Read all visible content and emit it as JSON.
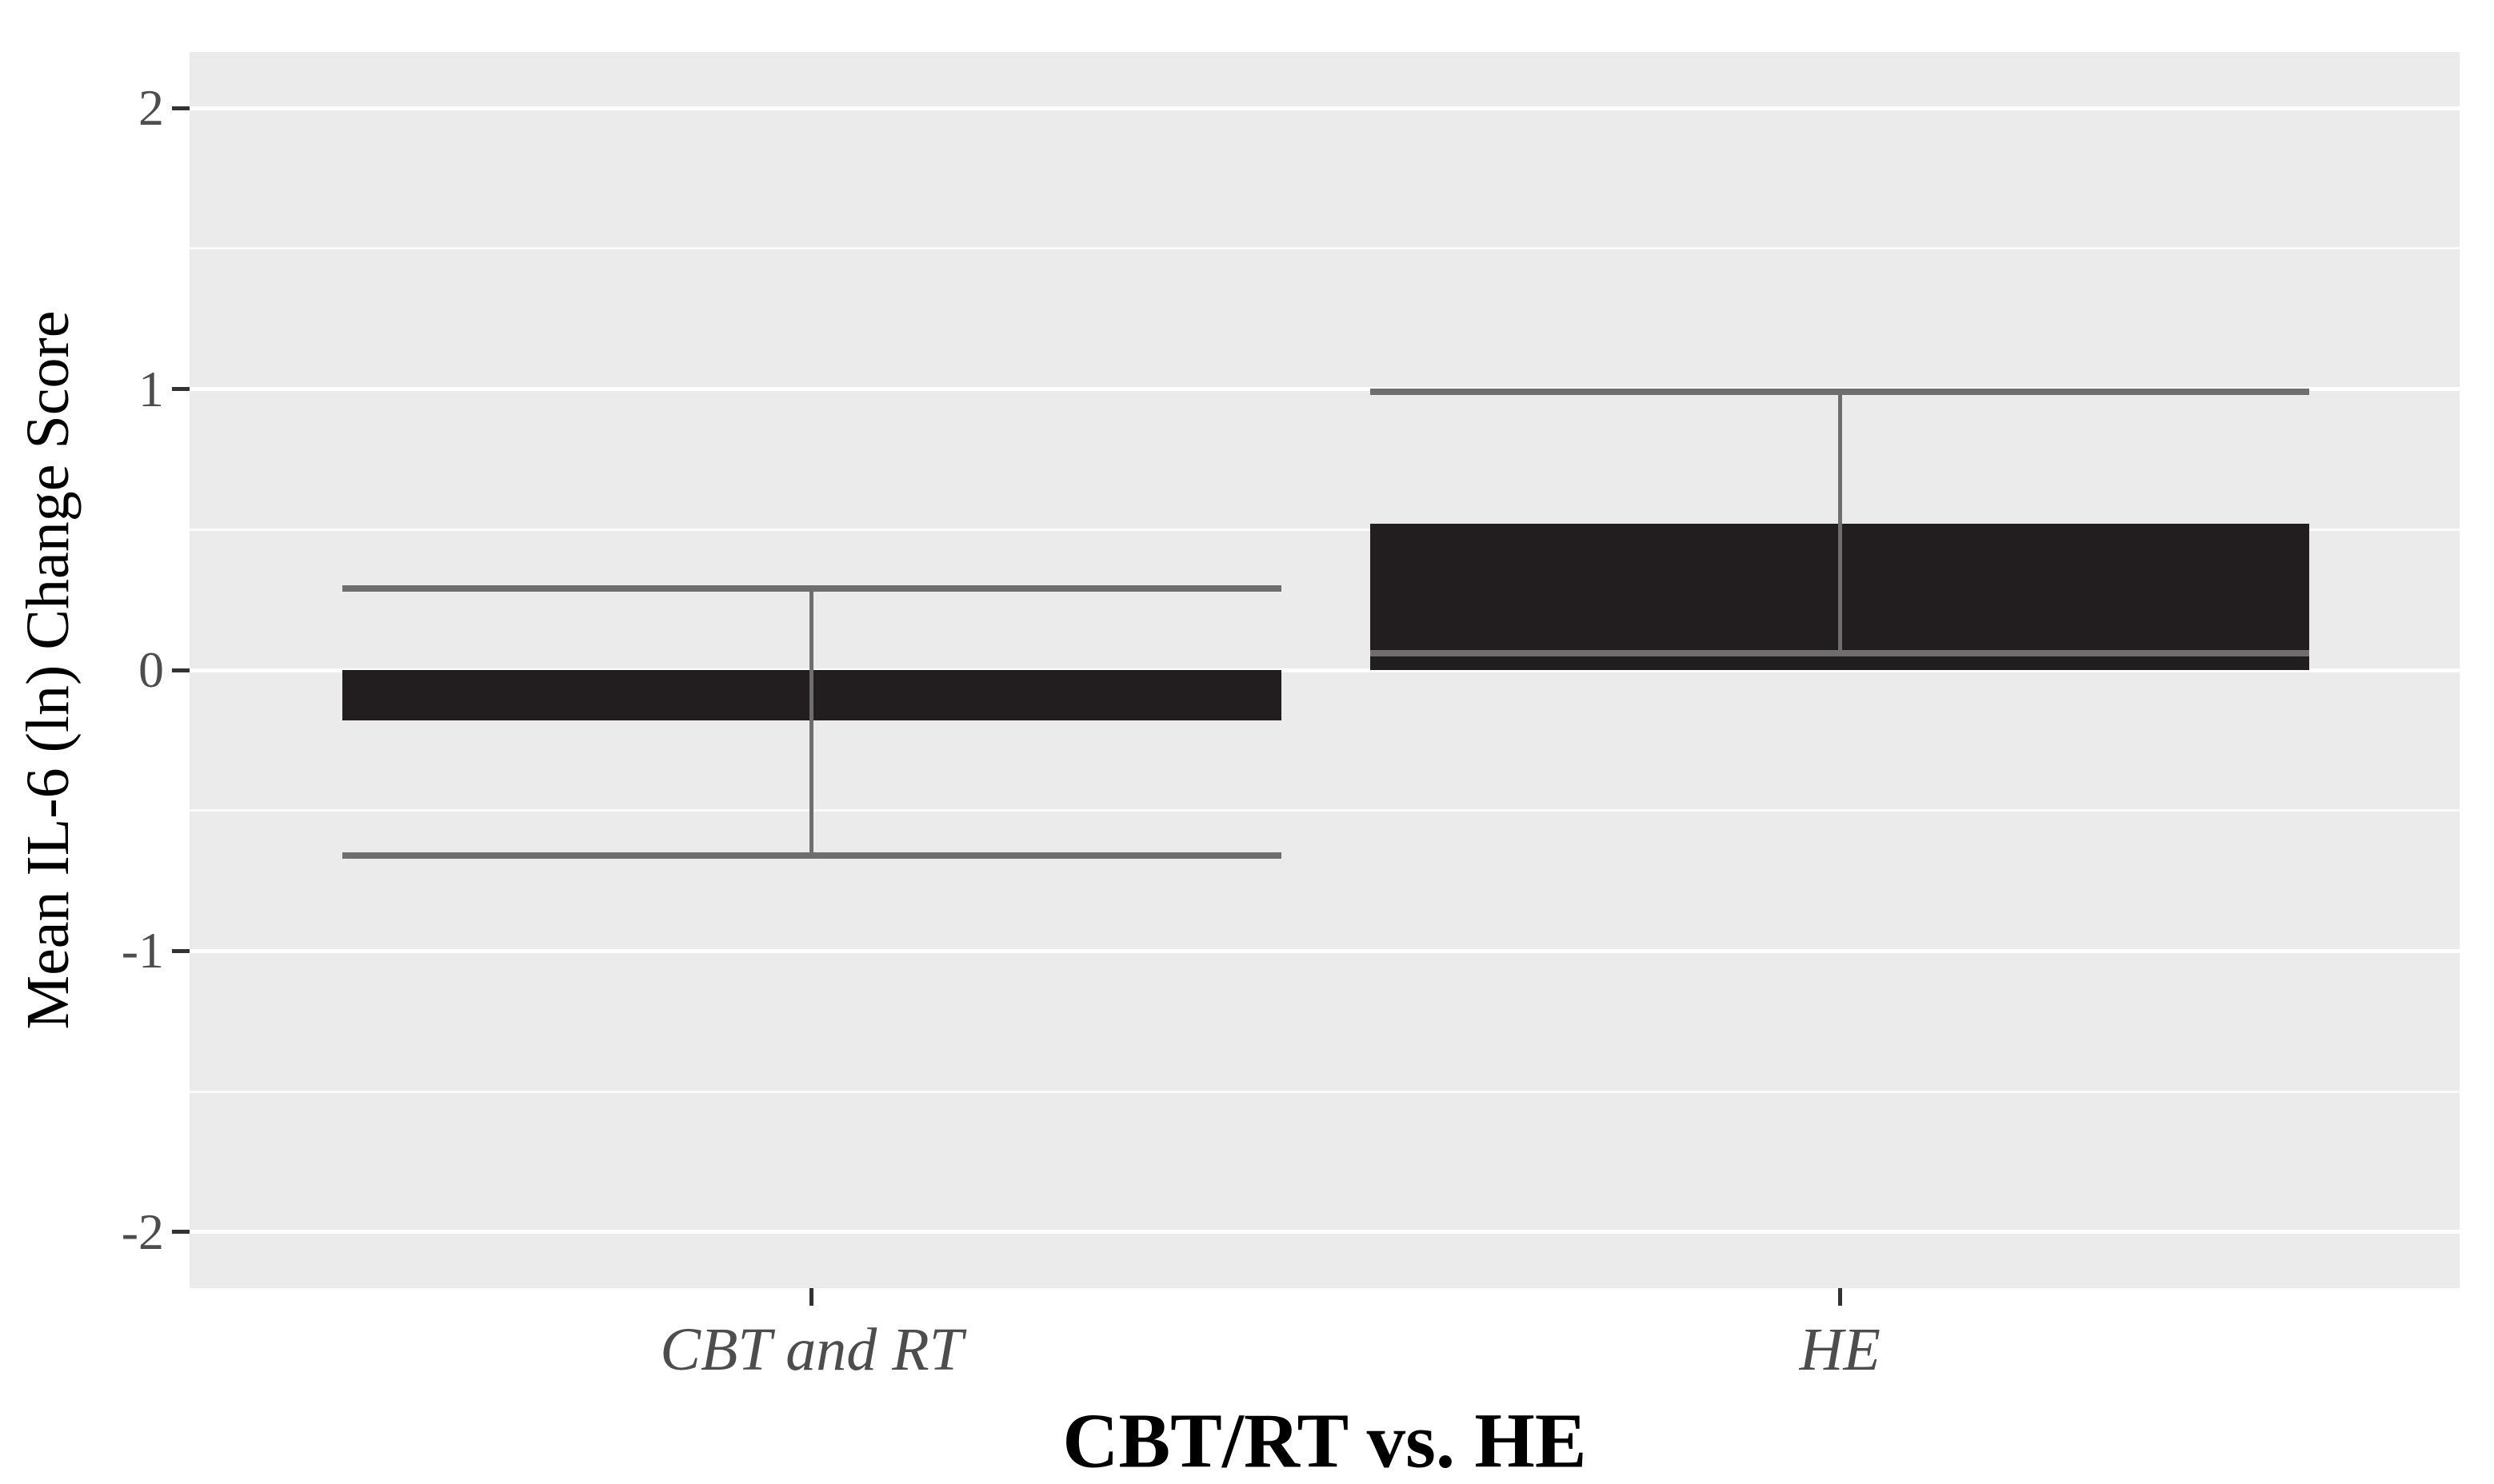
{
  "chart_data": {
    "type": "bar",
    "title": "",
    "xlabel": "CBT/RT vs. HE",
    "ylabel": "Mean IL-6 (ln) Change Score",
    "categories": [
      "CBT and RT",
      "HE"
    ],
    "series": [
      {
        "name": "Mean IL-6 (ln) Change Score",
        "values": [
          -0.18,
          0.52
        ],
        "error_low": [
          -0.66,
          0.06
        ],
        "error_high": [
          0.29,
          0.99
        ]
      }
    ],
    "bar_baseline": 0,
    "ylim": [
      -2.2,
      2.2
    ],
    "yticks_major": [
      2,
      1,
      0,
      -1,
      -2
    ],
    "yticks_minor": [
      1.5,
      0.5,
      -0.5,
      -1.5
    ],
    "grid": "horizontal major and minor white gridlines on gray panel",
    "legend": "none"
  },
  "style": {
    "panel_bg": "#ebebeb",
    "bar_fill": "#221e1f",
    "error_line_color": "#6e6e6e",
    "grid_major_color": "#ffffff",
    "tick_mark_color": "#333333",
    "tick_label_color": "#4d4d4d",
    "axis_title_color": "#000000"
  }
}
